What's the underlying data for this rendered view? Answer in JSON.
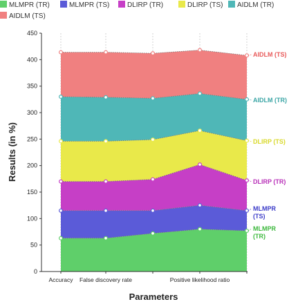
{
  "chart_data": {
    "type": "area",
    "stacked": true,
    "xlabel": "Parameters",
    "ylabel": "Results (in %)",
    "ylim": [
      0,
      450
    ],
    "yticks": [
      0,
      50,
      100,
      150,
      200,
      250,
      300,
      350,
      400,
      450
    ],
    "categories": [
      "Accuracy",
      "False discovery rate",
      "",
      "Positive likelihood ratio",
      ""
    ],
    "legend_position": "top",
    "series": [
      {
        "name": "MLMPR (TR)",
        "color": "#5fcf6a",
        "values": [
          63,
          63,
          72,
          80,
          77
        ],
        "end_label": [
          "MLMPR",
          "(TR)"
        ]
      },
      {
        "name": "MLMPR (TS)",
        "color": "#5b5bd8",
        "values": [
          115,
          115,
          115,
          125,
          115
        ],
        "end_label": [
          "MLMPR",
          "(TS)"
        ]
      },
      {
        "name": "DLIRP (TR)",
        "color": "#c63fc6",
        "values": [
          170,
          170,
          174,
          202,
          172
        ],
        "end_label": [
          "DLIRP (TR)"
        ]
      },
      {
        "name": "DLIRP (TS)",
        "color": "#e9e94a",
        "values": [
          246,
          246,
          249,
          266,
          247
        ],
        "end_label": [
          "DLIRP (TS)"
        ]
      },
      {
        "name": "AIDLM (TR)",
        "color": "#4fb7b7",
        "values": [
          330,
          329,
          327,
          336,
          325
        ],
        "end_label": [
          "AIDLM (TR)"
        ]
      },
      {
        "name": "AIDLM (TS)",
        "color": "#f08080",
        "values": [
          414,
          414,
          412,
          418,
          408
        ],
        "end_label": [
          "AIDLM (TS)"
        ]
      }
    ]
  },
  "colors": {
    "MLMPR_TR_label": "#3cb83c",
    "MLMPR_TS_label": "#3b3bc8",
    "DLIRP_TR_label": "#b82fb8",
    "DLIRP_TS_label": "#d9d92a",
    "AIDLM_TR_label": "#3aa5a5",
    "AIDLM_TS_label": "#e85a5a"
  }
}
